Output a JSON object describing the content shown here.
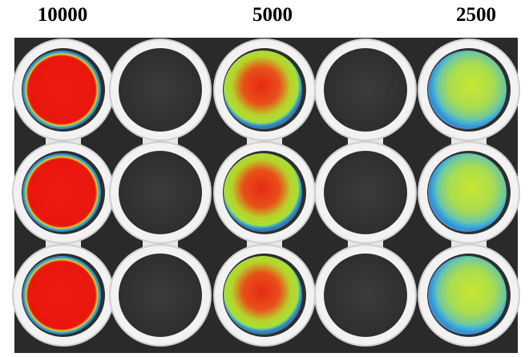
{
  "columns": [
    "10000",
    "5000",
    "2500"
  ]
}
